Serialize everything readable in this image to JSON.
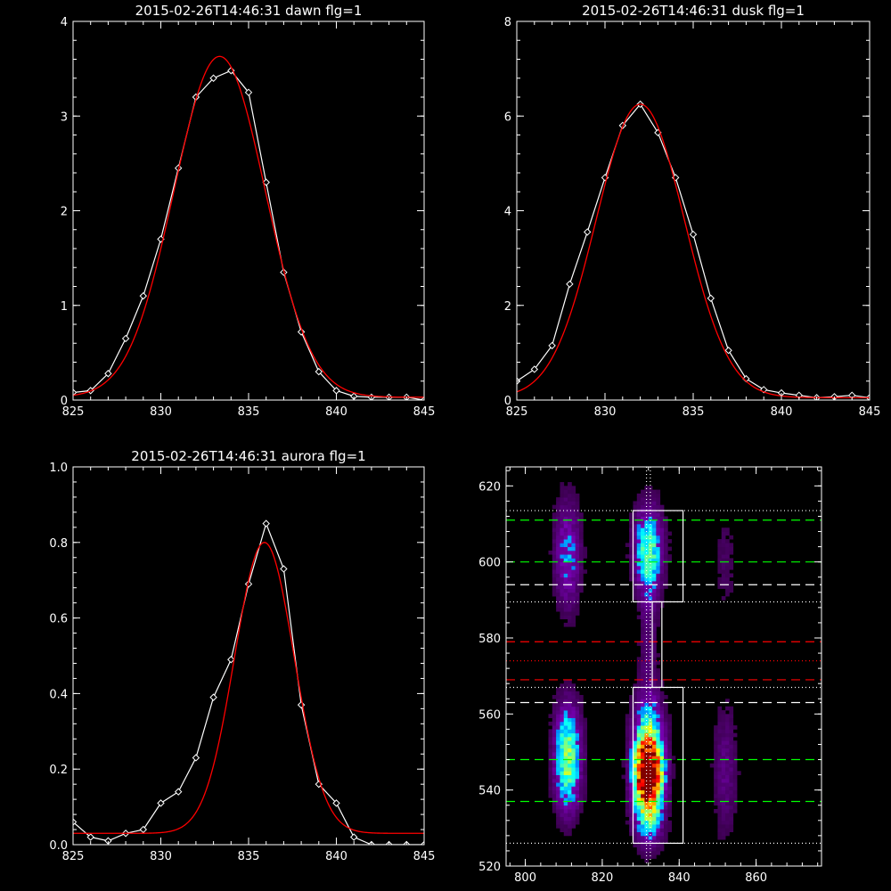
{
  "chart_data": [
    {
      "type": "line",
      "title": "2015-02-26T14:46:31 dawn flg=1",
      "xlim": [
        825,
        845
      ],
      "ylim": [
        0,
        4
      ],
      "xticks": [
        825,
        830,
        835,
        840,
        845
      ],
      "yticks": [
        0,
        1,
        2,
        3,
        4
      ],
      "series": [
        {
          "color": "#ffffff",
          "marker": "diamond",
          "x": [
            825,
            826,
            827,
            828,
            829,
            830,
            831,
            832,
            833,
            834,
            835,
            836,
            837,
            838,
            839,
            840,
            841,
            842,
            843,
            844,
            845
          ],
          "y": [
            0.08,
            0.1,
            0.28,
            0.65,
            1.1,
            1.7,
            2.45,
            3.2,
            3.4,
            3.48,
            3.25,
            2.3,
            1.35,
            0.72,
            0.3,
            0.1,
            0.04,
            0.03,
            0.03,
            0.03,
            0.0
          ]
        },
        {
          "color": "#ff0000",
          "gauss": {
            "amp": 3.6,
            "mu": 833.35,
            "sigma": 2.6,
            "base": 0.03
          }
        }
      ]
    },
    {
      "type": "line",
      "title": "2015-02-26T14:46:31 dusk flg=1",
      "xlim": [
        825,
        845
      ],
      "ylim": [
        0,
        8
      ],
      "xticks": [
        825,
        830,
        835,
        840,
        845
      ],
      "yticks": [
        0,
        2,
        4,
        6,
        8
      ],
      "series": [
        {
          "color": "#ffffff",
          "marker": "diamond",
          "x": [
            825,
            826,
            827,
            828,
            829,
            830,
            831,
            832,
            833,
            834,
            835,
            836,
            837,
            838,
            839,
            840,
            841,
            842,
            843,
            844,
            845
          ],
          "y": [
            0.4,
            0.65,
            1.15,
            2.45,
            3.55,
            4.7,
            5.8,
            6.25,
            5.65,
            4.7,
            3.5,
            2.15,
            1.05,
            0.45,
            0.22,
            0.15,
            0.1,
            0.05,
            0.07,
            0.1,
            0.05
          ]
        },
        {
          "color": "#ff0000",
          "gauss": {
            "amp": 6.2,
            "mu": 832.0,
            "sigma": 2.5,
            "base": 0.05
          }
        }
      ]
    },
    {
      "type": "line",
      "title": "2015-02-26T14:46:31 aurora flg=1",
      "xlim": [
        825,
        845
      ],
      "ylim": [
        0,
        1.0
      ],
      "xticks": [
        825,
        830,
        835,
        840,
        845
      ],
      "yticks": [
        0.0,
        0.2,
        0.4,
        0.6,
        0.8,
        1.0
      ],
      "series": [
        {
          "color": "#ffffff",
          "marker": "diamond",
          "x": [
            825,
            826,
            827,
            828,
            829,
            830,
            831,
            832,
            833,
            834,
            835,
            836,
            837,
            838,
            839,
            840,
            841,
            842,
            843,
            844,
            845
          ],
          "y": [
            0.06,
            0.02,
            0.01,
            0.03,
            0.04,
            0.11,
            0.14,
            0.23,
            0.39,
            0.49,
            0.69,
            0.85,
            0.73,
            0.37,
            0.16,
            0.11,
            0.02,
            0.0,
            0.0,
            0.0,
            0.0
          ]
        },
        {
          "color": "#ff0000",
          "gauss": {
            "amp": 0.77,
            "mu": 835.9,
            "sigma": 1.7,
            "base": 0.03
          }
        }
      ]
    },
    {
      "type": "heatmap",
      "xlim": [
        795,
        877
      ],
      "ylim": [
        520,
        625
      ],
      "xticks": [
        800,
        820,
        840,
        860
      ],
      "yticks": [
        520,
        540,
        560,
        580,
        600,
        620
      ],
      "blobs": [
        {
          "x": 832,
          "y": 544,
          "sx": 2.4,
          "sy": 6,
          "amp": 1.0
        },
        {
          "x": 832,
          "y": 552,
          "sx": 2.8,
          "sy": 9,
          "amp": 0.45
        },
        {
          "x": 832,
          "y": 603,
          "sx": 2.6,
          "sy": 8,
          "amp": 0.45
        },
        {
          "x": 832,
          "y": 533,
          "sx": 2.8,
          "sy": 6,
          "amp": 0.3
        },
        {
          "x": 832,
          "y": 580,
          "sx": 1.6,
          "sy": 12,
          "amp": 0.12
        },
        {
          "x": 811,
          "y": 545,
          "sx": 2.4,
          "sy": 8,
          "amp": 0.42
        },
        {
          "x": 811,
          "y": 602,
          "sx": 2.4,
          "sy": 10,
          "amp": 0.28
        },
        {
          "x": 811,
          "y": 556,
          "sx": 2.4,
          "sy": 7,
          "amp": 0.22
        },
        {
          "x": 852,
          "y": 545,
          "sx": 2.2,
          "sy": 12,
          "amp": 0.15
        },
        {
          "x": 852,
          "y": 600,
          "sx": 2.0,
          "sy": 10,
          "amp": 0.08
        }
      ],
      "hlines": [
        {
          "y": 611,
          "color": "#00ff00",
          "style": "dashed"
        },
        {
          "y": 600,
          "color": "#00ff00",
          "style": "dashed"
        },
        {
          "y": 594,
          "color": "#ffffff",
          "style": "dashed"
        },
        {
          "y": 589.5,
          "color": "#ffffff",
          "style": "dotted"
        },
        {
          "y": 579,
          "color": "#ff0000",
          "style": "dashed"
        },
        {
          "y": 574,
          "color": "#ff0000",
          "style": "dotted"
        },
        {
          "y": 569,
          "color": "#ff0000",
          "style": "dashed"
        },
        {
          "y": 567,
          "color": "#ffffff",
          "style": "dotted"
        },
        {
          "y": 563,
          "color": "#ffffff",
          "style": "dashed"
        },
        {
          "y": 548,
          "color": "#00ff00",
          "style": "dashed"
        },
        {
          "y": 537,
          "color": "#00ff00",
          "style": "dashed"
        },
        {
          "y": 526,
          "color": "#ffffff",
          "style": "dotted"
        },
        {
          "y": 613.5,
          "color": "#ffffff",
          "style": "dotted"
        }
      ],
      "vlines": [
        {
          "x": 831.5,
          "color": "#ffffff",
          "style": "dotted"
        },
        {
          "x": 832.5,
          "color": "#ffffff",
          "style": "dotted"
        }
      ],
      "boxes": [
        {
          "x0": 828,
          "x1": 841,
          "y0": 589.5,
          "y1": 613.5
        },
        {
          "x0": 833,
          "x1": 835.5,
          "y0": 567,
          "y1": 589.5
        },
        {
          "x0": 828,
          "x1": 841,
          "y0": 526,
          "y1": 567
        }
      ]
    }
  ]
}
